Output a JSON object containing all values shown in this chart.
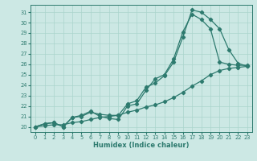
{
  "xlabel": "Humidex (Indice chaleur)",
  "bg_color": "#cce8e4",
  "line_color": "#2d7a6e",
  "grid_color": "#aad4cc",
  "xlim": [
    -0.5,
    23.5
  ],
  "ylim": [
    19.5,
    31.7
  ],
  "xticks": [
    0,
    1,
    2,
    3,
    4,
    5,
    6,
    7,
    8,
    9,
    10,
    11,
    12,
    13,
    14,
    15,
    16,
    17,
    18,
    19,
    20,
    21,
    22,
    23
  ],
  "yticks": [
    20,
    21,
    22,
    23,
    24,
    25,
    26,
    27,
    28,
    29,
    30,
    31
  ],
  "line1_x": [
    0,
    1,
    2,
    3,
    4,
    5,
    6,
    7,
    8,
    9,
    10,
    11,
    12,
    13,
    14,
    15,
    16,
    17,
    18,
    19,
    20,
    21,
    22,
    23
  ],
  "line1_y": [
    20.0,
    20.3,
    20.4,
    20.0,
    20.9,
    21.0,
    21.4,
    21.2,
    21.1,
    21.1,
    22.2,
    22.5,
    23.8,
    24.2,
    24.9,
    26.2,
    28.6,
    31.2,
    31.0,
    30.3,
    29.4,
    27.4,
    26.1,
    25.8
  ],
  "line2_x": [
    0,
    1,
    2,
    3,
    4,
    5,
    6,
    7,
    8,
    9,
    10,
    11,
    12,
    13,
    14,
    15,
    16,
    17,
    18,
    19,
    20,
    21,
    22,
    23
  ],
  "line2_y": [
    20.0,
    20.3,
    20.4,
    20.0,
    20.9,
    21.1,
    21.5,
    21.0,
    20.8,
    20.7,
    22.0,
    22.2,
    23.5,
    24.6,
    25.0,
    26.5,
    29.1,
    30.8,
    30.3,
    29.4,
    26.2,
    26.0,
    25.9,
    25.9
  ],
  "line3_x": [
    0,
    1,
    2,
    3,
    4,
    5,
    6,
    7,
    8,
    9,
    10,
    11,
    12,
    13,
    14,
    15,
    16,
    17,
    18,
    19,
    20,
    21,
    22,
    23
  ],
  "line3_y": [
    20.0,
    20.1,
    20.2,
    20.2,
    20.4,
    20.5,
    20.7,
    20.9,
    21.0,
    21.1,
    21.4,
    21.6,
    21.9,
    22.1,
    22.4,
    22.8,
    23.3,
    23.9,
    24.4,
    25.0,
    25.4,
    25.6,
    25.7,
    25.8
  ],
  "xlabel_fontsize": 6,
  "tick_fontsize": 4.8,
  "linewidth": 0.9,
  "markersize": 2.2
}
